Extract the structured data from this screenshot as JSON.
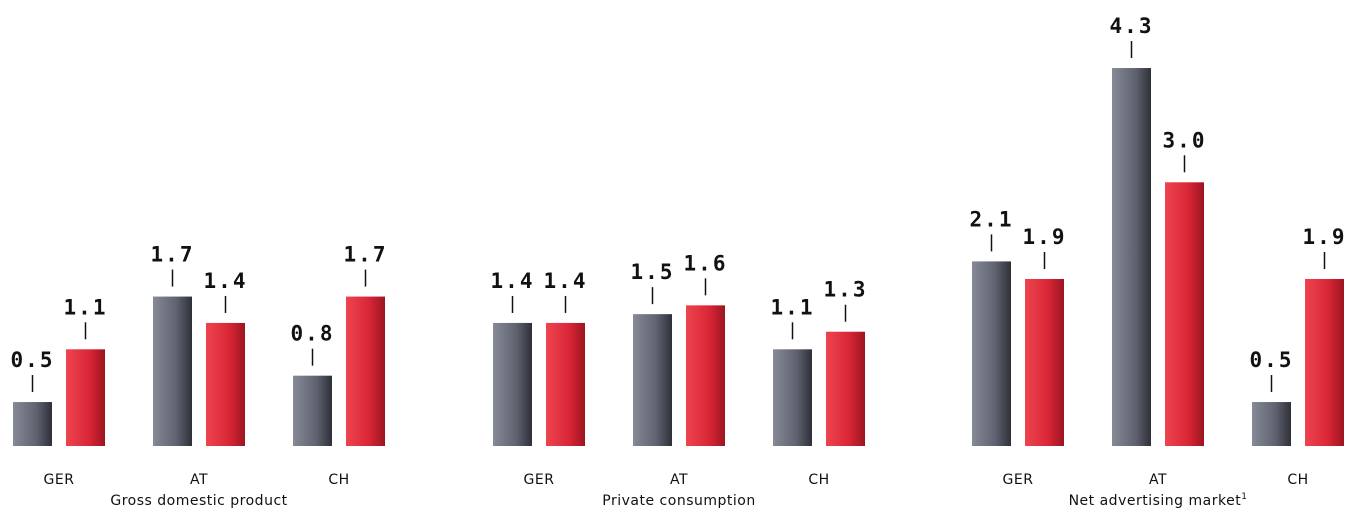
{
  "chart_data": [
    {
      "type": "bar",
      "title": "Gross domestic product",
      "categories": [
        "GER",
        "AT",
        "CH"
      ],
      "series": [
        {
          "values": [
            0.5,
            1.7,
            0.8
          ],
          "color": "#5f6370"
        },
        {
          "values": [
            1.1,
            1.4,
            1.7
          ],
          "color": "#d92636"
        }
      ],
      "value_labels": [
        [
          "0.5",
          "1.7",
          "0.8"
        ],
        [
          "1.1",
          "1.4",
          "1.7"
        ]
      ],
      "ylim": [
        0,
        4.3
      ]
    },
    {
      "type": "bar",
      "title": "Private consumption",
      "categories": [
        "GER",
        "AT",
        "CH"
      ],
      "series": [
        {
          "values": [
            1.4,
            1.5,
            1.1
          ],
          "color": "#5f6370"
        },
        {
          "values": [
            1.4,
            1.6,
            1.3
          ],
          "color": "#d92636"
        }
      ],
      "value_labels": [
        [
          "1.4",
          "1.5",
          "1.1"
        ],
        [
          "1.4",
          "1.6",
          "1.3"
        ]
      ],
      "ylim": [
        0,
        4.3
      ]
    },
    {
      "type": "bar",
      "title": "Net advertising market",
      "title_footnote": "1",
      "categories": [
        "GER",
        "AT",
        "CH"
      ],
      "series": [
        {
          "values": [
            2.1,
            4.3,
            0.5
          ],
          "color": "#5f6370"
        },
        {
          "values": [
            1.9,
            3.0,
            1.9
          ],
          "color": "#d92636"
        }
      ],
      "value_labels": [
        [
          "2.1",
          "4.3",
          "0.5"
        ],
        [
          "1.9",
          "3.0",
          "1.9"
        ]
      ],
      "ylim": [
        0,
        4.3
      ]
    }
  ]
}
